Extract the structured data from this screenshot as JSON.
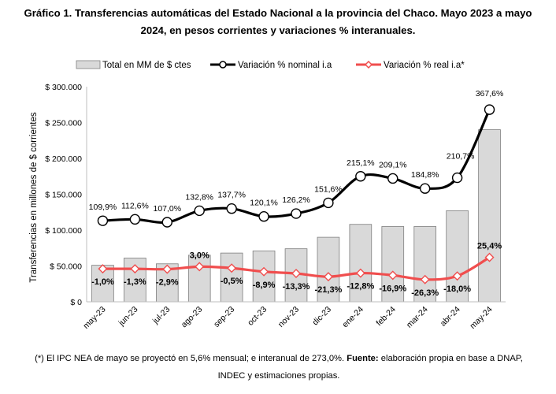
{
  "title": {
    "line1": "Gráfico 1. Transferencias automáticas del Estado Nacional a la provincia del Chaco. Mayo 2023 a mayo",
    "line2": "2024, en pesos corrientes y variaciones % interanuales."
  },
  "footnote": {
    "line1_part1": "(*) El IPC NEA de mayo se proyectó en 5,6% mensual; e interanual de 273,0%. ",
    "line1_bold": "Fuente:",
    "line1_part2": " elaboración propia en base a DNAP,",
    "line2": "INDEC y estimaciones propias."
  },
  "colors": {
    "bar_fill": "#d9d9d9",
    "bar_stroke": "#7f7f7f",
    "nominal_line": "#000000",
    "real_line": "#f04e4e"
  },
  "chart_data": {
    "type": "bar",
    "categories": [
      "may-23",
      "jun-23",
      "jul-23",
      "ago-23",
      "sep-23",
      "oct-23",
      "nov-23",
      "dic-23",
      "ene-24",
      "feb-24",
      "mar-24",
      "abr-24",
      "may-24"
    ],
    "ylabel": "Transferencias en millones de $ corrientes",
    "ylim": [
      0,
      300000
    ],
    "y_ticks": [
      0,
      50000,
      100000,
      150000,
      200000,
      250000,
      300000
    ],
    "y_tick_labels": [
      "$ 0",
      "$ 50.000",
      "$ 100.000",
      "$ 150.000",
      "$ 200.000",
      "$ 250.000",
      "$ 300.000"
    ],
    "grid": false,
    "legend_position": "top",
    "series": [
      {
        "name": "Total en MM de $ ctes",
        "type": "bar",
        "values": [
          51000,
          61000,
          53000,
          65000,
          68000,
          71000,
          74000,
          90000,
          108000,
          105000,
          105000,
          127000,
          240000
        ]
      },
      {
        "name": "Variación % nominal i.a",
        "type": "line",
        "values": [
          109.9,
          112.6,
          107.0,
          132.8,
          137.7,
          120.1,
          126.2,
          151.6,
          215.1,
          209.1,
          184.8,
          210.7,
          367.6
        ],
        "plot_y": [
          113000,
          115000,
          111000,
          127000,
          130000,
          119000,
          123000,
          138000,
          175000,
          172000,
          158000,
          173000,
          268000
        ],
        "labels": [
          "109,9%",
          "112,6%",
          "107,0%",
          "132,8%",
          "137,7%",
          "120,1%",
          "126,2%",
          "151,6%",
          "215,1%",
          "209,1%",
          "184,8%",
          "210,7%",
          "367,6%"
        ]
      },
      {
        "name": "Variación % real i.a*",
        "type": "line",
        "values": [
          -1.0,
          -1.3,
          -2.9,
          3.0,
          -0.5,
          -8.9,
          -13.3,
          -21.3,
          -12.8,
          -16.9,
          -26.3,
          -18.0,
          25.4
        ],
        "plot_y": [
          46000,
          46000,
          45500,
          49000,
          47000,
          42000,
          39500,
          35000,
          40000,
          37000,
          31000,
          36000,
          62000
        ],
        "labels": [
          "-1,0%",
          "-1,3%",
          "-2,9%",
          "3,0%",
          "-0,5%",
          "-8,9%",
          "-13,3%",
          "-21,3%",
          "-12,8%",
          "-16,9%",
          "-26,3%",
          "-18,0%",
          "25,4%"
        ]
      }
    ]
  }
}
